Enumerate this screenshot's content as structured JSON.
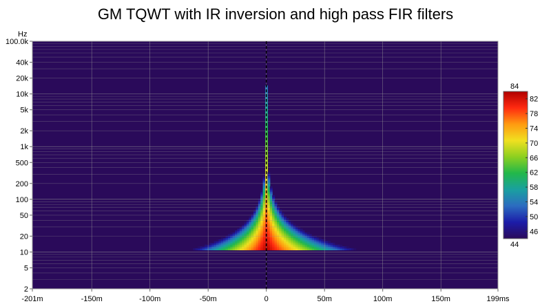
{
  "chart_data": {
    "type": "heatmap",
    "title": "GM TQWT with IR inversion and high pass FIR filters",
    "ylabel": "Hz",
    "xlabel": "",
    "x_unit_suffix": "ms",
    "x_range": [
      -201,
      199
    ],
    "y_scale": "log",
    "y_range": [
      2,
      100000
    ],
    "y_ticks": [
      {
        "value": 100000,
        "label": "100.0k"
      },
      {
        "value": 40000,
        "label": "40k"
      },
      {
        "value": 20000,
        "label": "20k"
      },
      {
        "value": 10000,
        "label": "10k"
      },
      {
        "value": 5000,
        "label": "5k"
      },
      {
        "value": 2000,
        "label": "2k"
      },
      {
        "value": 1000,
        "label": "1k"
      },
      {
        "value": 500,
        "label": "500"
      },
      {
        "value": 200,
        "label": "200"
      },
      {
        "value": 100,
        "label": "100"
      },
      {
        "value": 50,
        "label": "50"
      },
      {
        "value": 20,
        "label": "20"
      },
      {
        "value": 10,
        "label": "10"
      },
      {
        "value": 5,
        "label": "5"
      },
      {
        "value": 2,
        "label": "2"
      }
    ],
    "x_ticks": [
      {
        "value": -201,
        "label": "-201m"
      },
      {
        "value": -150,
        "label": "-150m"
      },
      {
        "value": -100,
        "label": "-100m"
      },
      {
        "value": -50,
        "label": "-50m"
      },
      {
        "value": 0,
        "label": "0"
      },
      {
        "value": 50,
        "label": "50m"
      },
      {
        "value": 100,
        "label": "100m"
      },
      {
        "value": 150,
        "label": "150m"
      },
      {
        "value": 199,
        "label": "199ms"
      }
    ],
    "colorbar": {
      "min": 44,
      "max": 84,
      "min_label": "44",
      "max_label": "84",
      "ticks": [
        82,
        78,
        74,
        70,
        66,
        62,
        58,
        54,
        50,
        46
      ],
      "colors": [
        "#2a0a5a",
        "#1c1ca8",
        "#2c6cc0",
        "#1aa0a0",
        "#22b84a",
        "#8cd020",
        "#f0e020",
        "#ff9a10",
        "#ff2a10",
        "#b00000"
      ]
    },
    "data_cutoff_hz": 11,
    "peak_time_ms": 0,
    "peak_top_hz": 15000,
    "background_color": "#2a0a5a",
    "grid": true,
    "legend": "colorbar-right"
  }
}
